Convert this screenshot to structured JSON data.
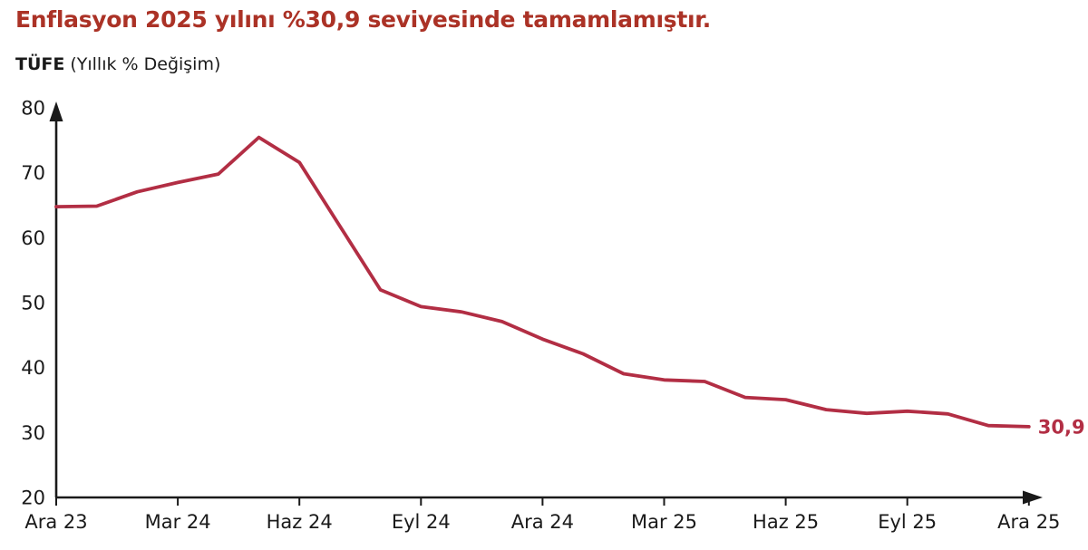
{
  "header": {
    "title": "Enflasyon 2025 yılını %30,9 seviyesinde tamamlamıştır.",
    "series_name": "TÜFE",
    "series_unit": "(Yıllık % Değişim)"
  },
  "colors": {
    "title_red": "#ab3226",
    "line_red": "#b22e44",
    "axis_black": "#1a1a1a",
    "background": "#ffffff"
  },
  "chart_data": {
    "type": "line",
    "title": "Enflasyon 2025 yılını %30,9 seviyesinde tamamlamıştır.",
    "subtitle": "TÜFE (Yıllık % Değişim)",
    "x": [
      "Ara 23",
      "Oca 24",
      "Şub 24",
      "Mar 24",
      "Nis 24",
      "May 24",
      "Haz 24",
      "Tem 24",
      "Ağu 24",
      "Eyl 24",
      "Eki 24",
      "Kas 24",
      "Ara 24",
      "Oca 25",
      "Şub 25",
      "Mar 25",
      "Nis 25",
      "May 25",
      "Haz 25",
      "Tem 25",
      "Ağu 25",
      "Eyl 25",
      "Eki 25",
      "Kas 25",
      "Ara 25"
    ],
    "values": [
      64.77,
      64.86,
      67.07,
      68.5,
      69.8,
      75.45,
      71.6,
      61.78,
      51.97,
      49.38,
      48.58,
      47.09,
      44.38,
      42.12,
      39.05,
      38.1,
      37.86,
      35.41,
      35.05,
      33.52,
      32.95,
      33.29,
      32.87,
      31.07,
      30.9
    ],
    "x_tick_labels": [
      "Ara 23",
      "Mar 24",
      "Haz 24",
      "Eyl 24",
      "Ara 24",
      "Mar 25",
      "Haz 25",
      "Eyl 25",
      "Ara 25"
    ],
    "x_tick_indices": [
      0,
      3,
      6,
      9,
      12,
      15,
      18,
      21,
      24
    ],
    "y_ticks": [
      20,
      30,
      40,
      50,
      60,
      70,
      80
    ],
    "ylim": [
      20,
      80
    ],
    "grid": false,
    "legend": "none",
    "end_label": "30,9",
    "line_color": "#b22e44",
    "axis_color": "#1a1a1a"
  }
}
